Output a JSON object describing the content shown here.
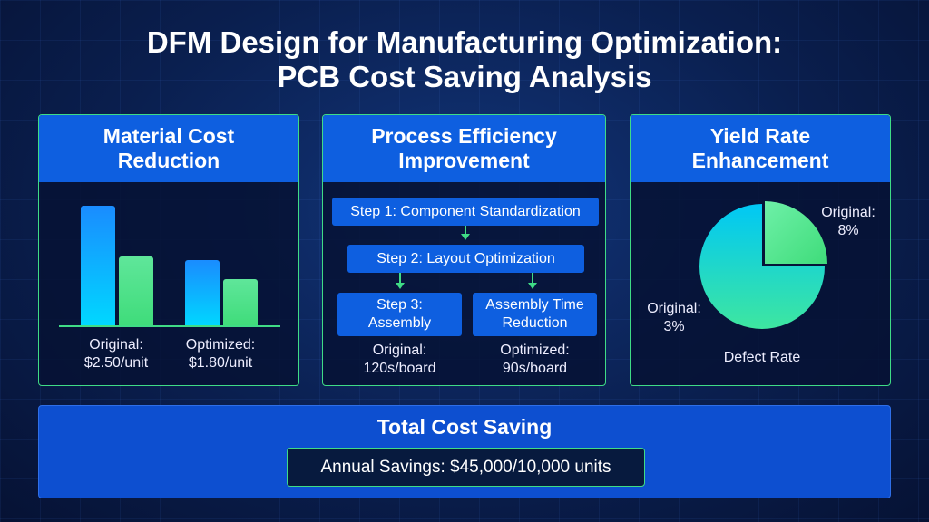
{
  "title": {
    "line1": "DFM Design for Manufacturing Optimization:",
    "line2": "PCB Cost Saving Analysis"
  },
  "material": {
    "heading_line1": "Material Cost",
    "heading_line2": "Reduction",
    "bar_levels": [
      1.0,
      0.58,
      0.55,
      0.39
    ],
    "original_label": "Original:",
    "original_value": "$2.50/unit",
    "optimized_label": "Optimized:",
    "optimized_value": "$1.80/unit"
  },
  "process": {
    "heading_line1": "Process Efficiency",
    "heading_line2": "Improvement",
    "step1": "Step 1: Component Standardization",
    "step2": "Step 2: Layout Optimization",
    "step3_line1": "Step 3:",
    "step3_line2": "Assembly",
    "reduction_line1": "Assembly Time",
    "reduction_line2": "Reduction",
    "original_label": "Original:",
    "original_value": "120s/board",
    "optimized_label": "Optimized:",
    "optimized_value": "90s/board"
  },
  "yield": {
    "heading_line1": "Yield Rate",
    "heading_line2": "Enhancement",
    "pie_fraction_highlight": 0.25,
    "label_a_line1": "Original:",
    "label_a_line2": "8%",
    "label_b_line1": "Original:",
    "label_b_line2": "3%",
    "caption": "Defect Rate"
  },
  "total": {
    "heading": "Total Cost Saving",
    "savings": "Annual Savings: $45,000/10,000 units"
  },
  "colors": {
    "accent_blue": "#0e5fe0",
    "accent_green": "#3fdc86",
    "background": "#0a1f4f"
  }
}
